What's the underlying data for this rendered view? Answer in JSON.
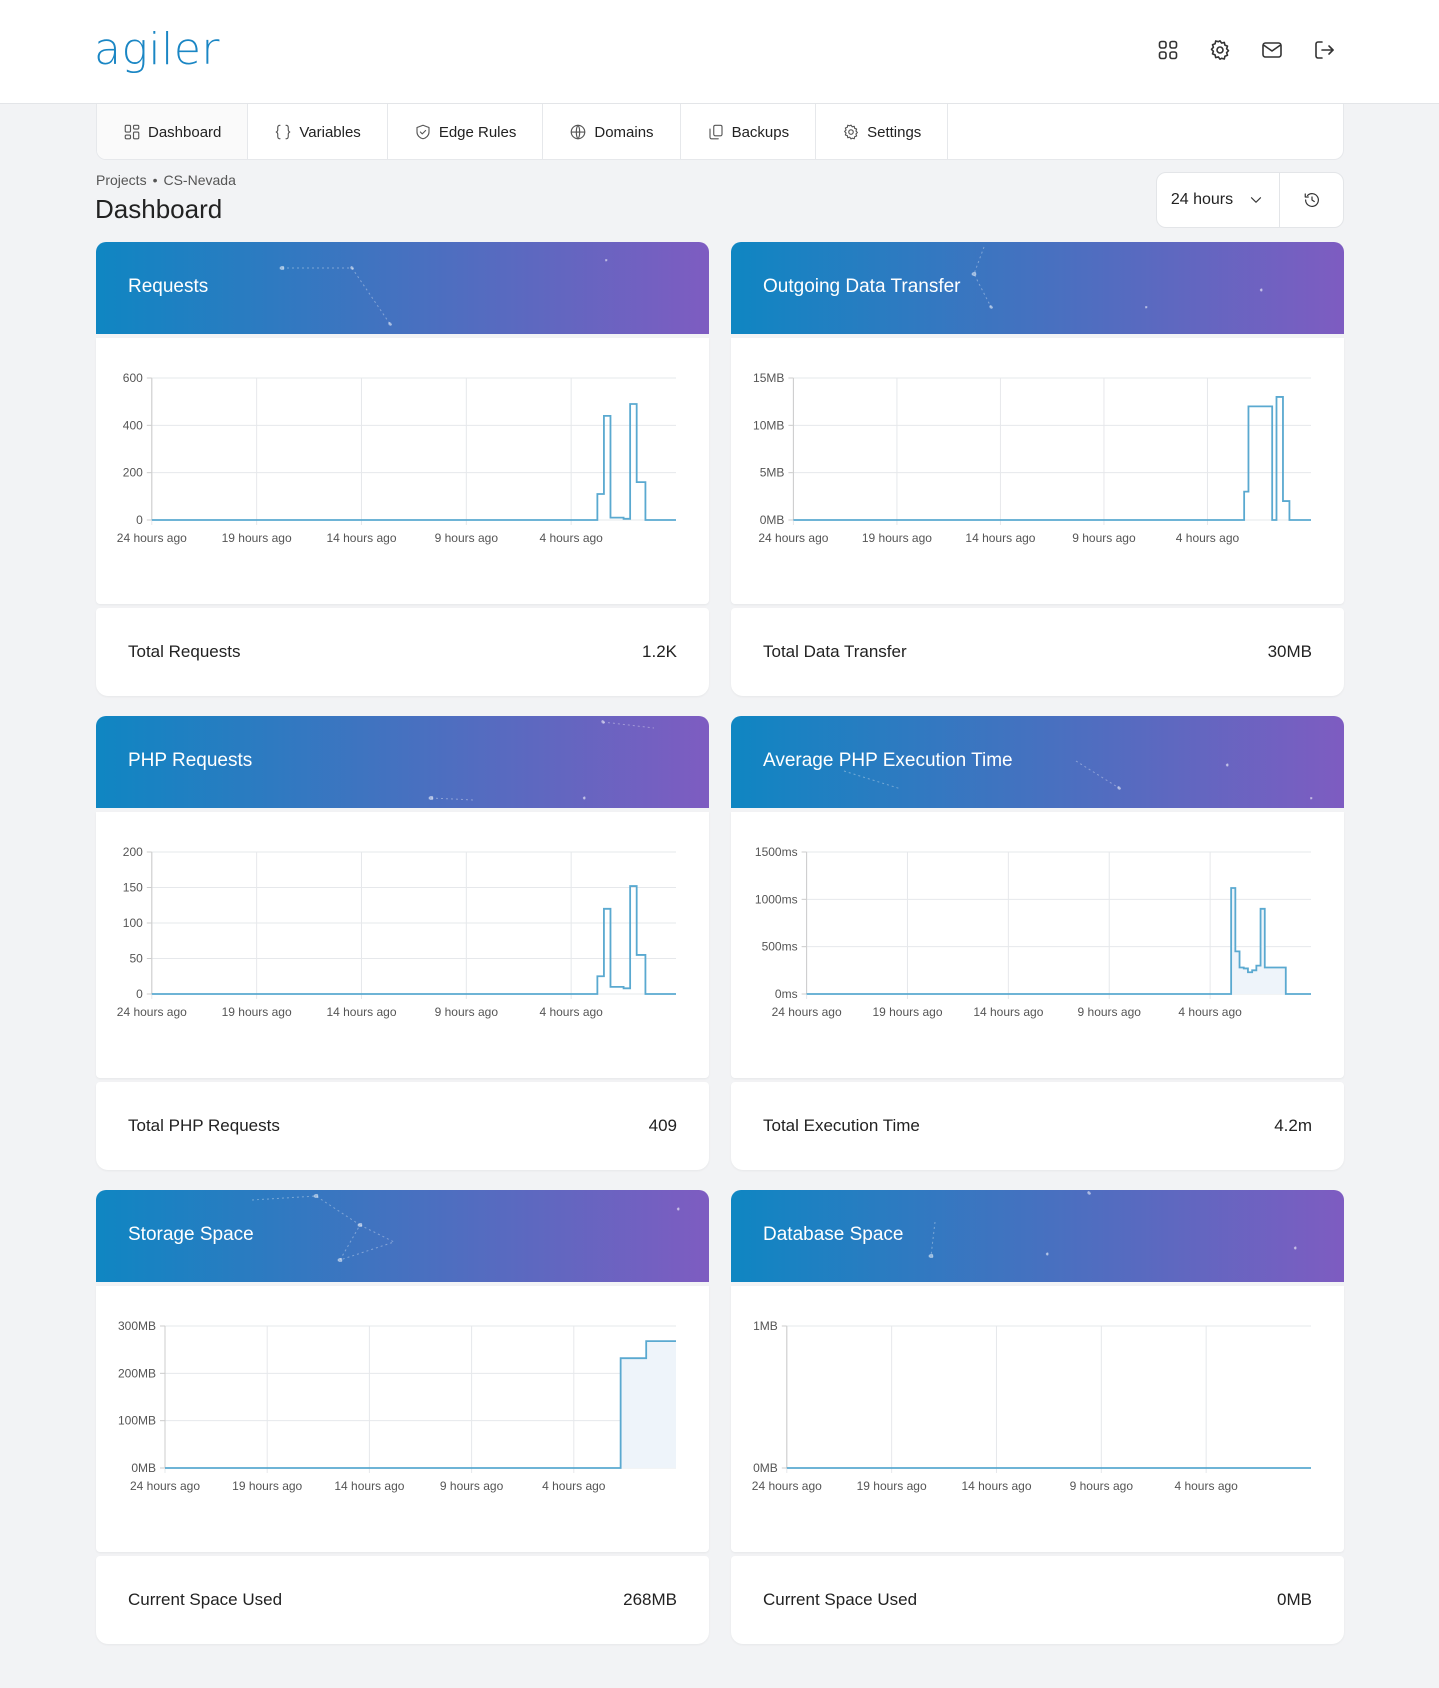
{
  "brand": {
    "logo": "agiler"
  },
  "header_icons": [
    "apps-grid-icon",
    "settings-gear-icon",
    "mail-icon",
    "logout-icon"
  ],
  "tabs": [
    {
      "label": "Dashboard",
      "icon": "dashboard-icon",
      "active": true
    },
    {
      "label": "Variables",
      "icon": "braces-icon",
      "active": false
    },
    {
      "label": "Edge Rules",
      "icon": "shield-icon",
      "active": false
    },
    {
      "label": "Domains",
      "icon": "globe-icon",
      "active": false
    },
    {
      "label": "Backups",
      "icon": "copy-icon",
      "active": false
    },
    {
      "label": "Settings",
      "icon": "gear-icon",
      "active": false
    }
  ],
  "breadcrumb": {
    "root": "Projects",
    "separator": "•",
    "project": "CS-Nevada"
  },
  "page_title": "Dashboard",
  "range": {
    "selected": "24 hours"
  },
  "colors": {
    "accent": "#1a86c4",
    "gradient_start": "#0f86c2",
    "gradient_end": "#7e5cc1",
    "line": "#5aa9d0",
    "fill": "#eef4fa"
  },
  "panels": [
    {
      "title": "Requests",
      "footer_label": "Total Requests",
      "footer_value": "1.2K"
    },
    {
      "title": "Outgoing Data Transfer",
      "footer_label": "Total Data Transfer",
      "footer_value": "30MB"
    },
    {
      "title": "PHP Requests",
      "footer_label": "Total PHP Requests",
      "footer_value": "409"
    },
    {
      "title": "Average PHP Execution Time",
      "footer_label": "Total Execution Time",
      "footer_value": "4.2m"
    },
    {
      "title": "Storage Space",
      "footer_label": "Current Space Used",
      "footer_value": "268MB"
    },
    {
      "title": "Database Space",
      "footer_label": "Current Space Used",
      "footer_value": "0MB"
    }
  ],
  "chart_data": [
    {
      "type": "line",
      "title": "Requests",
      "x_ticks": [
        "24 hours ago",
        "19 hours ago",
        "14 hours ago",
        "9 hours ago",
        "4 hours ago"
      ],
      "y_ticks": [
        "0",
        "200",
        "400",
        "600"
      ],
      "ylim": [
        0,
        600
      ],
      "xlim": [
        24,
        0
      ],
      "step": true,
      "fill": false,
      "series": [
        {
          "x": [
            24,
            4.2,
            3.6,
            3.3,
            3.0,
            2.4,
            2.1,
            1.8,
            1.4,
            0
          ],
          "y": [
            0,
            0,
            110,
            440,
            10,
            5,
            490,
            160,
            0,
            0
          ]
        }
      ]
    },
    {
      "type": "line",
      "title": "Outgoing Data Transfer",
      "x_ticks": [
        "24 hours ago",
        "19 hours ago",
        "14 hours ago",
        "9 hours ago",
        "4 hours ago"
      ],
      "y_ticks": [
        "0MB",
        "5MB",
        "10MB",
        "15MB"
      ],
      "ylim": [
        0,
        15
      ],
      "xlim": [
        24,
        0
      ],
      "step": true,
      "fill": false,
      "series": [
        {
          "x": [
            24,
            3.3,
            3.1,
            2.9,
            1.8,
            1.6,
            1.3,
            1.0,
            0
          ],
          "y": [
            0,
            0,
            3,
            12,
            0,
            13,
            2,
            0,
            0
          ]
        }
      ]
    },
    {
      "type": "line",
      "title": "PHP Requests",
      "x_ticks": [
        "24 hours ago",
        "19 hours ago",
        "14 hours ago",
        "9 hours ago",
        "4 hours ago"
      ],
      "y_ticks": [
        "0",
        "50",
        "100",
        "150",
        "200"
      ],
      "ylim": [
        0,
        200
      ],
      "xlim": [
        24,
        0
      ],
      "step": true,
      "fill": false,
      "series": [
        {
          "x": [
            24,
            4.2,
            3.6,
            3.3,
            3.0,
            2.4,
            2.1,
            1.8,
            1.4,
            0
          ],
          "y": [
            0,
            0,
            25,
            120,
            10,
            8,
            152,
            55,
            0,
            0
          ]
        }
      ]
    },
    {
      "type": "line",
      "title": "Average PHP Execution Time",
      "x_ticks": [
        "24 hours ago",
        "19 hours ago",
        "14 hours ago",
        "9 hours ago",
        "4 hours ago"
      ],
      "y_ticks": [
        "0ms",
        "500ms",
        "1000ms",
        "1500ms"
      ],
      "ylim": [
        0,
        1500
      ],
      "xlim": [
        24,
        0
      ],
      "step": true,
      "fill": true,
      "series": [
        {
          "x": [
            24,
            4.0,
            3.8,
            3.6,
            3.4,
            3.2,
            3.0,
            2.8,
            2.6,
            2.4,
            2.2,
            1.2,
            0
          ],
          "y": [
            0,
            0,
            1120,
            450,
            280,
            270,
            230,
            250,
            300,
            900,
            280,
            0,
            0
          ]
        }
      ]
    },
    {
      "type": "area",
      "title": "Storage Space",
      "x_ticks": [
        "24 hours ago",
        "19 hours ago",
        "14 hours ago",
        "9 hours ago",
        "4 hours ago"
      ],
      "y_ticks": [
        "0MB",
        "100MB",
        "200MB",
        "300MB"
      ],
      "ylim": [
        0,
        300
      ],
      "xlim": [
        24,
        0
      ],
      "step": true,
      "fill": true,
      "series": [
        {
          "x": [
            24,
            2.6,
            1.4,
            0
          ],
          "y": [
            0,
            232,
            268,
            268
          ]
        }
      ]
    },
    {
      "type": "line",
      "title": "Database Space",
      "x_ticks": [
        "24 hours ago",
        "19 hours ago",
        "14 hours ago",
        "9 hours ago",
        "4 hours ago"
      ],
      "y_ticks": [
        "0MB",
        "1MB"
      ],
      "ylim": [
        0,
        1
      ],
      "xlim": [
        24,
        0
      ],
      "step": true,
      "fill": false,
      "series": [
        {
          "x": [
            24,
            0
          ],
          "y": [
            0,
            0
          ]
        }
      ]
    }
  ]
}
